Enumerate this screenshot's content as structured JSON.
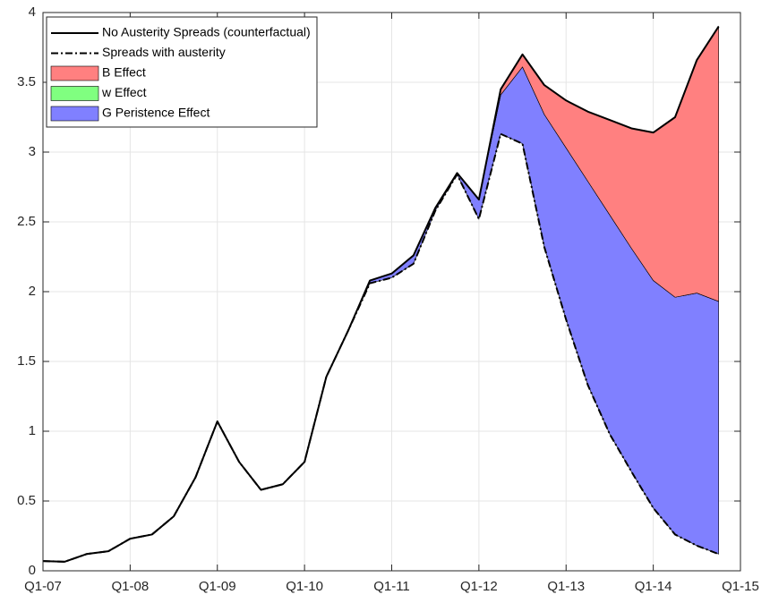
{
  "chart_data": {
    "type": "stacked_area",
    "categories": [
      "Q1-07",
      null,
      null,
      null,
      "Q1-08",
      null,
      null,
      null,
      "Q1-09",
      null,
      null,
      null,
      "Q1-10",
      null,
      null,
      null,
      "Q1-11",
      null,
      null,
      null,
      "Q1-12",
      null,
      null,
      null,
      "Q1-13",
      null,
      null,
      null,
      "Q1-14",
      null,
      null,
      null,
      "Q1-15"
    ],
    "series": [
      {
        "name": "No Austerity Spreads (counterfactual)",
        "kind": "line",
        "dash": "solid",
        "color": "#000000",
        "values": [
          0.07,
          0.065,
          0.12,
          0.14,
          0.23,
          0.26,
          0.39,
          0.67,
          1.07,
          0.78,
          0.58,
          0.62,
          0.78,
          1.39,
          1.72,
          2.08,
          2.13,
          2.26,
          2.6,
          2.85,
          2.66,
          3.45,
          3.7,
          3.48,
          3.37,
          3.29,
          3.23,
          3.17,
          3.14,
          3.25,
          3.66,
          3.9,
          null
        ]
      },
      {
        "name": "Spreads with austerity",
        "kind": "line",
        "dash": "dashdot",
        "color": "#000000",
        "values": [
          0.07,
          0.065,
          0.12,
          0.14,
          0.23,
          0.26,
          0.39,
          0.67,
          1.07,
          0.78,
          0.58,
          0.62,
          0.78,
          1.39,
          1.72,
          2.06,
          2.1,
          2.2,
          2.58,
          2.84,
          2.52,
          3.13,
          3.06,
          2.32,
          1.8,
          1.33,
          0.98,
          0.71,
          0.45,
          0.26,
          0.18,
          0.12,
          null
        ]
      },
      {
        "name": "B Effect",
        "kind": "area",
        "color": "#ff8080",
        "values": [
          0,
          0,
          0,
          0,
          0,
          0,
          0,
          0,
          0,
          0,
          0,
          0,
          0,
          0,
          0,
          0,
          0,
          0,
          0,
          0,
          0,
          0.04,
          0.09,
          0.21,
          0.34,
          0.5,
          0.68,
          0.86,
          1.06,
          1.29,
          1.67,
          1.97,
          null
        ]
      },
      {
        "name": "w Effect",
        "kind": "area",
        "color": "#80ff80",
        "values": [
          0,
          0,
          0,
          0,
          0,
          0,
          0,
          0,
          0,
          0,
          0,
          0,
          0,
          0,
          0,
          0,
          0,
          0,
          0,
          0,
          0,
          0,
          0,
          0,
          0,
          0,
          0,
          0,
          0,
          0,
          0,
          0,
          null
        ]
      },
      {
        "name": "G Peristence Effect",
        "kind": "area",
        "color": "#8080ff",
        "values": [
          0,
          0,
          0,
          0,
          0,
          0,
          0,
          0,
          0,
          0,
          0,
          0,
          0,
          0,
          0,
          0.02,
          0.03,
          0.06,
          0.02,
          0.01,
          0.14,
          0.28,
          0.55,
          0.95,
          1.23,
          1.46,
          1.57,
          1.6,
          1.63,
          1.7,
          1.81,
          1.81,
          null
        ]
      }
    ],
    "ylim": [
      0,
      4
    ],
    "yticks": [
      0,
      0.5,
      1,
      1.5,
      2,
      2.5,
      3,
      3.5,
      4
    ],
    "grid": true,
    "legend": "upper-left"
  }
}
